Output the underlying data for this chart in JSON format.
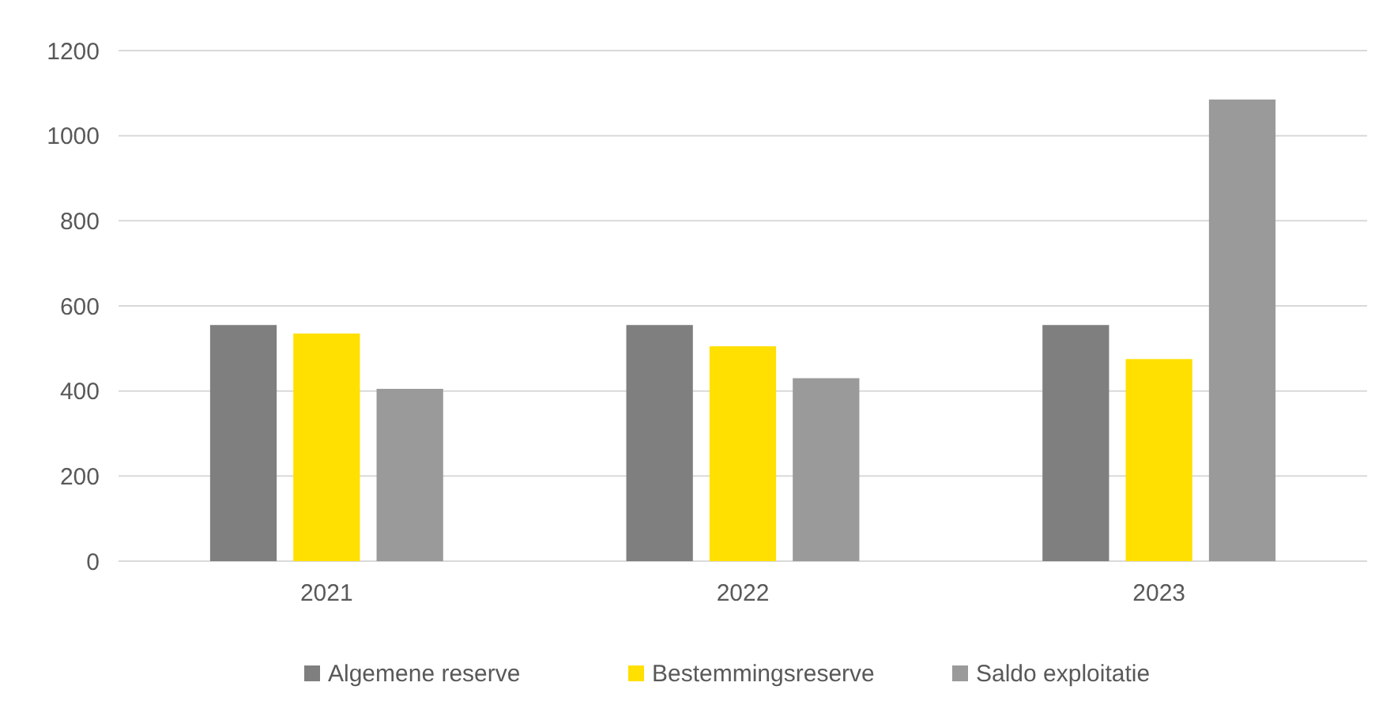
{
  "chart_data": {
    "type": "bar",
    "categories": [
      "2021",
      "2022",
      "2023"
    ],
    "series": [
      {
        "name": "Algemene reserve",
        "color": "#7f7f7f",
        "values": [
          555,
          555,
          555
        ]
      },
      {
        "name": "Bestemmingsreserve",
        "color": "#ffe000",
        "values": [
          535,
          505,
          475
        ]
      },
      {
        "name": "Saldo exploitatie",
        "color": "#9a9a9a",
        "values": [
          405,
          430,
          1085
        ]
      }
    ],
    "ylim": [
      0,
      1200
    ],
    "yticks": [
      0,
      200,
      400,
      600,
      800,
      1000,
      1200
    ],
    "grid": "y",
    "legend": "bottom"
  }
}
